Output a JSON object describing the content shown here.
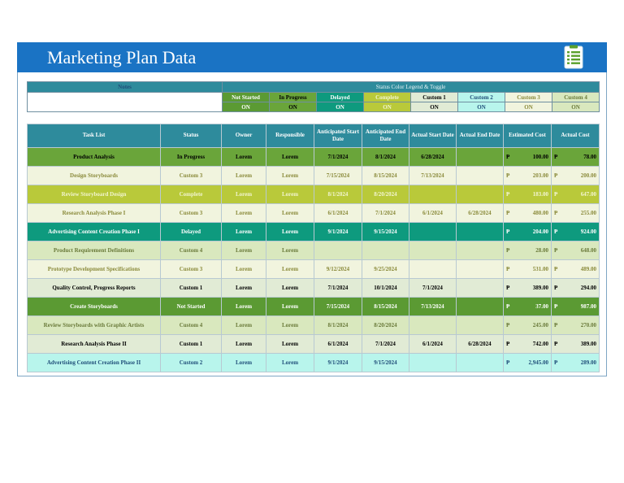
{
  "header": {
    "title": "Marketing Plan Data",
    "icon": "checklist-icon"
  },
  "legend": {
    "notes_label": "Notes",
    "title": "Status Color Legend & Toggle",
    "statuses": [
      {
        "name": "Not Started",
        "toggle": "ON",
        "bg": "#5b9a33",
        "fg": "#ffffff"
      },
      {
        "name": "In Progress",
        "toggle": "ON",
        "bg": "#6aa53a",
        "fg": "#000000"
      },
      {
        "name": "Delayed",
        "toggle": "ON",
        "bg": "#0e9a7e",
        "fg": "#ffffff"
      },
      {
        "name": "Complete",
        "toggle": "ON",
        "bg": "#b9c93a",
        "fg": "#f2f5d0"
      },
      {
        "name": "Custom 1",
        "toggle": "ON",
        "bg": "#e1ebd5",
        "fg": "#000000"
      },
      {
        "name": "Custom 2",
        "toggle": "ON",
        "bg": "#b8f5ec",
        "fg": "#1f4e79"
      },
      {
        "name": "Custom 3",
        "toggle": "ON",
        "bg": "#f1f4de",
        "fg": "#8a8a3a"
      },
      {
        "name": "Custom 4",
        "toggle": "ON",
        "bg": "#d9e8be",
        "fg": "#6a7a3a"
      }
    ]
  },
  "table": {
    "headers": [
      "Task List",
      "Status",
      "Owner",
      "Responsible",
      "Anticipated Start Date",
      "Anticipated End Date",
      "Actual Start Date",
      "Actual End Date",
      "Estimated Cost",
      "Actual Cost"
    ],
    "currency": "₱",
    "rows": [
      {
        "task": "Product Analysis",
        "status": "In Progress",
        "owner": "Lorem",
        "resp": "Lorem",
        "as": "7/1/2024",
        "ae": "8/1/2024",
        "s": "6/28/2024",
        "e": "",
        "est": "100.00",
        "act": "78.00",
        "bg": "#6aa53a",
        "fg": "#000000"
      },
      {
        "task": "Design Storyboards",
        "status": "Custom 3",
        "owner": "Lorem",
        "resp": "Lorem",
        "as": "7/15/2024",
        "ae": "8/15/2024",
        "s": "7/13/2024",
        "e": "",
        "est": "203.00",
        "act": "200.00",
        "bg": "#f1f4de",
        "fg": "#8a8a3a"
      },
      {
        "task": "Review Storyboard Design",
        "status": "Complete",
        "owner": "Lorem",
        "resp": "Lorem",
        "as": "8/1/2024",
        "ae": "8/20/2024",
        "s": "",
        "e": "",
        "est": "183.00",
        "act": "647.00",
        "bg": "#b9c93a",
        "fg": "#f2f5d0"
      },
      {
        "task": "Research Analysis Phase I",
        "status": "Custom 3",
        "owner": "Lorem",
        "resp": "Lorem",
        "as": "6/1/2024",
        "ae": "7/1/2024",
        "s": "6/1/2024",
        "e": "6/28/2024",
        "est": "480.00",
        "act": "255.00",
        "bg": "#f1f4de",
        "fg": "#8a8a3a"
      },
      {
        "task": "Advertising Content Creation Phase I",
        "status": "Delayed",
        "owner": "Lorem",
        "resp": "Lorem",
        "as": "9/1/2024",
        "ae": "9/15/2024",
        "s": "",
        "e": "",
        "est": "204.00",
        "act": "924.00",
        "bg": "#0e9a7e",
        "fg": "#ffffff"
      },
      {
        "task": "Product Requirement Definitions",
        "status": "Custom 4",
        "owner": "Lorem",
        "resp": "Lorem",
        "as": "",
        "ae": "",
        "s": "",
        "e": "",
        "est": "28.00",
        "act": "648.00",
        "bg": "#d9e8be",
        "fg": "#6a7a3a"
      },
      {
        "task": "Prototype Development Specifications",
        "status": "Custom 3",
        "owner": "Lorem",
        "resp": "Lorem",
        "as": "9/12/2024",
        "ae": "9/25/2024",
        "s": "",
        "e": "",
        "est": "531.00",
        "act": "489.00",
        "bg": "#f1f4de",
        "fg": "#8a8a3a"
      },
      {
        "task": "Quality Control, Progress Reports",
        "status": "Custom 1",
        "owner": "Lorem",
        "resp": "Lorem",
        "as": "7/1/2024",
        "ae": "10/1/2024",
        "s": "7/1/2024",
        "e": "",
        "est": "389.00",
        "act": "294.00",
        "bg": "#e1ebd5",
        "fg": "#000000"
      },
      {
        "task": "Create Storyboards",
        "status": "Not Started",
        "owner": "Lorem",
        "resp": "Lorem",
        "as": "7/15/2024",
        "ae": "8/15/2024",
        "s": "7/13/2024",
        "e": "",
        "est": "37.00",
        "act": "987.00",
        "bg": "#5b9a33",
        "fg": "#ffffff"
      },
      {
        "task": "Review Storyboards with Graphic Artists",
        "status": "Custom 4",
        "owner": "Lorem",
        "resp": "Lorem",
        "as": "8/1/2024",
        "ae": "8/20/2024",
        "s": "",
        "e": "",
        "est": "245.00",
        "act": "270.00",
        "bg": "#d9e8be",
        "fg": "#6a7a3a"
      },
      {
        "task": "Research Analysis Phase II",
        "status": "Custom 1",
        "owner": "Lorem",
        "resp": "Lorem",
        "as": "6/1/2024",
        "ae": "7/1/2024",
        "s": "6/1/2024",
        "e": "6/28/2024",
        "est": "742.00",
        "act": "389.00",
        "bg": "#e1ebd5",
        "fg": "#000000"
      },
      {
        "task": "Advertising Content Creation Phase II",
        "status": "Custom 2",
        "owner": "Lorem",
        "resp": "Lorem",
        "as": "9/1/2024",
        "ae": "9/15/2024",
        "s": "",
        "e": "",
        "est": "2,945.00",
        "act": "289.00",
        "bg": "#b8f5ec",
        "fg": "#1f4e79"
      }
    ]
  }
}
